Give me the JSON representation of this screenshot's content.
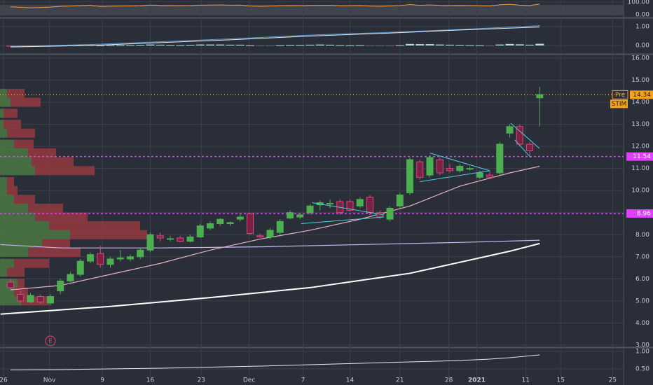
{
  "chart_data": {
    "type": "candlestick",
    "symbol": "STIM",
    "x": [
      0,
      1,
      2,
      3,
      4,
      5,
      6,
      7,
      8,
      9,
      10,
      11,
      12,
      13,
      14,
      15,
      16,
      17,
      18,
      19,
      20,
      21,
      22,
      23,
      24,
      25,
      26,
      27,
      28,
      29,
      30,
      31,
      32,
      33,
      34,
      35,
      36,
      37,
      38,
      39,
      40,
      41,
      42,
      43,
      44,
      45,
      46,
      47,
      48,
      49,
      50,
      51,
      52,
      53
    ],
    "open": [
      5.85,
      5.3,
      4.95,
      5.2,
      4.9,
      5.45,
      5.9,
      6.2,
      6.8,
      7.15,
      6.65,
      6.9,
      6.9,
      7.0,
      7.3,
      7.95,
      7.8,
      7.85,
      7.7,
      7.9,
      8.3,
      8.5,
      8.5,
      8.7,
      8.95,
      7.95,
      7.9,
      8.1,
      8.75,
      8.8,
      9.0,
      9.35,
      9.4,
      9.5,
      9.5,
      9.3,
      9.7,
      9.0,
      8.7,
      9.3,
      9.9,
      11.3,
      10.7,
      11.4,
      11.0,
      10.9,
      11.0,
      10.6,
      10.7,
      10.8,
      12.6,
      12.9,
      12.1,
      14.2
    ],
    "high": [
      6.0,
      5.45,
      5.35,
      5.3,
      5.3,
      6.0,
      6.3,
      6.9,
      7.2,
      7.5,
      7.0,
      7.3,
      7.1,
      7.4,
      8.1,
      8.1,
      7.95,
      7.95,
      8.0,
      8.5,
      8.6,
      8.75,
      8.6,
      8.95,
      9.0,
      8.05,
      8.3,
      8.7,
      9.1,
      9.0,
      9.4,
      9.55,
      9.6,
      9.6,
      9.6,
      9.7,
      9.8,
      9.1,
      9.3,
      9.9,
      11.5,
      11.4,
      11.6,
      11.5,
      11.2,
      11.2,
      11.1,
      10.9,
      10.9,
      12.2,
      13.0,
      13.0,
      12.2,
      14.7
    ],
    "low": [
      5.5,
      4.9,
      4.9,
      4.85,
      4.8,
      5.3,
      5.8,
      6.1,
      6.7,
      6.5,
      6.5,
      6.8,
      6.8,
      6.9,
      7.2,
      7.7,
      7.7,
      7.65,
      7.65,
      7.85,
      8.2,
      8.4,
      8.4,
      8.6,
      8.0,
      7.85,
      7.8,
      8.0,
      8.7,
      8.7,
      8.9,
      9.1,
      9.2,
      8.9,
      9.05,
      9.2,
      8.9,
      8.7,
      8.6,
      9.2,
      9.8,
      10.5,
      10.6,
      10.7,
      10.8,
      10.8,
      10.9,
      10.5,
      10.5,
      10.7,
      12.4,
      12.0,
      11.6,
      12.9
    ],
    "close": [
      5.6,
      5.0,
      5.25,
      4.95,
      5.2,
      5.9,
      6.2,
      6.8,
      7.1,
      6.65,
      6.9,
      6.95,
      7.0,
      7.3,
      8.0,
      7.85,
      7.82,
      7.7,
      7.9,
      8.4,
      8.5,
      8.7,
      8.55,
      8.8,
      8.05,
      7.9,
      8.2,
      8.6,
      9.0,
      8.9,
      9.3,
      9.45,
      9.42,
      9.0,
      9.1,
      9.6,
      9.0,
      8.8,
      9.2,
      9.8,
      11.4,
      10.6,
      11.5,
      10.8,
      10.9,
      11.1,
      11.0,
      10.8,
      10.6,
      12.1,
      12.9,
      12.1,
      11.8,
      14.35
    ],
    "up_color": "#4caf50",
    "down_color": "#e0457b",
    "xlim": [
      -1.05,
      61.4
    ],
    "ylim": [
      2.87,
      16.16
    ],
    "xticks": [
      {
        "value": -0.7,
        "label": "26"
      },
      {
        "value": 3.9,
        "label": "Nov"
      },
      {
        "value": 9.2,
        "label": "9"
      },
      {
        "value": 14.0,
        "label": "16"
      },
      {
        "value": 19.1,
        "label": "23"
      },
      {
        "value": 23.9,
        "label": "Dec"
      },
      {
        "value": 29.3,
        "label": "7"
      },
      {
        "value": 34.0,
        "label": "14"
      },
      {
        "value": 39.0,
        "label": "21"
      },
      {
        "value": 43.9,
        "label": "28"
      },
      {
        "value": 46.7,
        "label": "2021"
      },
      {
        "value": 51.6,
        "label": "11"
      },
      {
        "value": 55.1,
        "label": "15"
      },
      {
        "value": 60.3,
        "label": "25"
      }
    ],
    "yticks": [
      {
        "value": 3,
        "label": "3.00"
      },
      {
        "value": 4,
        "label": "4.00"
      },
      {
        "value": 5,
        "label": "5.00"
      },
      {
        "value": 6,
        "label": "6.00"
      },
      {
        "value": 7,
        "label": "7.00"
      },
      {
        "value": 8,
        "label": "8.00"
      },
      {
        "value": 9,
        "label": "9.00"
      },
      {
        "value": 10,
        "label": "10.00"
      },
      {
        "value": 11,
        "label": "11.00"
      },
      {
        "value": 12,
        "label": "12.00"
      },
      {
        "value": 13,
        "label": "13.00"
      },
      {
        "value": 14,
        "label": "14.00"
      },
      {
        "value": 15,
        "label": "15.00"
      },
      {
        "value": 16,
        "label": "16.00"
      }
    ],
    "grid": true,
    "moving_averages": [
      {
        "color": "#ffffff",
        "x": [
          -1,
          10,
          20,
          30,
          40,
          45,
          50,
          53
        ],
        "values": [
          4.4,
          4.75,
          5.15,
          5.6,
          6.25,
          6.75,
          7.25,
          7.6
        ]
      },
      {
        "color": "#c9b8f0",
        "x": [
          -1,
          5,
          15,
          25,
          35,
          45,
          53
        ],
        "values": [
          7.55,
          7.4,
          7.4,
          7.45,
          7.55,
          7.65,
          7.75
        ]
      },
      {
        "color": "#e6b3c2",
        "x": [
          0,
          5,
          10,
          15,
          20,
          25,
          30,
          35,
          40,
          45,
          50,
          53
        ],
        "values": [
          5.5,
          5.7,
          6.2,
          6.7,
          7.3,
          7.8,
          8.2,
          8.7,
          9.3,
          10.2,
          10.8,
          11.1
        ]
      }
    ],
    "trendlines": [
      {
        "x": [
          30.2,
          37.4
        ],
        "values": [
          9.45,
          8.9
        ]
      },
      {
        "x": [
          29.1,
          37.4
        ],
        "values": [
          8.5,
          8.8
        ]
      },
      {
        "x": [
          42,
          48
        ],
        "values": [
          11.7,
          10.9
        ]
      },
      {
        "x": [
          41,
          48
        ],
        "values": [
          10.4,
          10.9
        ]
      },
      {
        "x": [
          50.1,
          53
        ],
        "values": [
          13.05,
          11.9
        ]
      },
      {
        "x": [
          50.5,
          52.1
        ],
        "values": [
          12.3,
          11.5
        ]
      }
    ],
    "trendline_color": "#4dd0e1",
    "levels": [
      {
        "value": 14.34,
        "label": "14.34",
        "tag": "Pre",
        "color": "#f7a21b"
      },
      {
        "value": 11.54,
        "label": "11.54",
        "color": "#e040fb"
      },
      {
        "value": 8.96,
        "label": "8.96",
        "color": "#e040fb"
      }
    ],
    "volume_profile": {
      "price": [
        14.4,
        14.0,
        13.5,
        13.0,
        12.6,
        12.1,
        11.7,
        11.3,
        10.9,
        10.4,
        10.0,
        9.6,
        9.2,
        8.8,
        8.4,
        8.0,
        7.6,
        7.2,
        6.7,
        6.3,
        5.8,
        5.4,
        5.0
      ],
      "up": [
        10,
        15,
        5,
        5,
        10,
        20,
        40,
        45,
        50,
        10,
        10,
        20,
        40,
        50,
        70,
        100,
        60,
        40,
        20,
        10,
        25,
        20,
        30
      ],
      "down": [
        25,
        43,
        20,
        25,
        40,
        28,
        40,
        60,
        85,
        10,
        15,
        30,
        50,
        75,
        130,
        110,
        40,
        75,
        50,
        25,
        10,
        20,
        40
      ],
      "up_color": "#4e7d45",
      "down_color": "#9b3a40"
    },
    "event": {
      "label": "E",
      "x": 4
    },
    "indicators": {
      "rsi": {
        "color": "#f39c4a",
        "ylim": [
          -15,
          115
        ],
        "yticks": [
          {
            "value": 0,
            "label": "0.00"
          },
          {
            "value": 100,
            "label": "100.00"
          }
        ],
        "values": [
          62,
          58,
          55,
          57,
          60,
          66,
          68,
          72,
          74,
          65,
          67,
          68,
          69,
          71,
          76,
          73,
          72,
          71,
          72,
          75,
          76,
          77,
          75,
          76,
          68,
          66,
          68,
          70,
          72,
          71,
          73,
          74,
          74,
          70,
          70,
          72,
          68,
          66,
          69,
          72,
          80,
          74,
          77,
          73,
          72,
          73,
          72,
          70,
          69,
          78,
          82,
          75,
          72,
          84
        ]
      },
      "macd": {
        "ylim": [
          -0.41,
          1.41
        ],
        "yticks": [
          {
            "value": 0,
            "label": "0.00"
          },
          {
            "value": 1,
            "label": "1.00"
          }
        ],
        "lines": [
          {
            "color": "#5b9bd5",
            "x": [
              0,
              8,
              15,
              22,
              30,
              38,
              45,
              53
            ],
            "values": [
              -0.05,
              0.05,
              0.2,
              0.35,
              0.55,
              0.7,
              0.85,
              1.05
            ]
          },
          {
            "color": "#e8e8e8",
            "x": [
              0,
              8,
              15,
              22,
              30,
              38,
              45,
              53
            ],
            "values": [
              -0.08,
              0.0,
              0.15,
              0.3,
              0.5,
              0.66,
              0.82,
              0.98
            ]
          }
        ],
        "hist_up_color": "#b2dfdb",
        "hist_down_color": "#e91e63",
        "hist": [
          -0.06,
          -0.07,
          -0.08,
          -0.06,
          -0.05,
          -0.04,
          -0.02,
          0.02,
          0.03,
          0.01,
          0.02,
          0.02,
          0.02,
          0.03,
          0.05,
          0.04,
          0.03,
          0.02,
          0.03,
          0.05,
          0.05,
          0.05,
          0.04,
          0.04,
          0.01,
          -0.02,
          -0.01,
          0.01,
          0.03,
          0.03,
          0.04,
          0.05,
          0.04,
          0.02,
          0.01,
          0.02,
          -0.01,
          -0.03,
          -0.01,
          0.02,
          0.08,
          0.07,
          0.07,
          0.05,
          0.04,
          0.03,
          0.02,
          0.01,
          -0.01,
          0.05,
          0.08,
          0.06,
          0.04,
          0.09
        ]
      },
      "lower": {
        "color": "#e8e8e8",
        "ylim": [
          0.04,
          1.1
        ],
        "yticks": [
          {
            "value": 0.5,
            "label": "0.50"
          },
          {
            "value": 1,
            "label": "1.00"
          }
        ],
        "x": [
          0,
          5,
          10,
          15,
          20,
          25,
          30,
          35,
          40,
          45,
          48,
          50,
          53
        ],
        "values": [
          0.47,
          0.48,
          0.5,
          0.52,
          0.55,
          0.58,
          0.62,
          0.66,
          0.7,
          0.74,
          0.78,
          0.82,
          0.9
        ]
      }
    }
  }
}
